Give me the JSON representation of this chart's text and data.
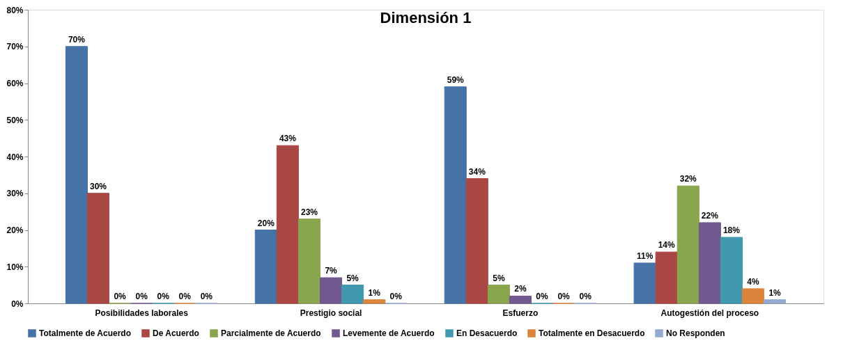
{
  "chart_data": {
    "type": "bar",
    "title": "Dimensión 1",
    "categories": [
      "Posibilidades laborales",
      "Prestigio social",
      "Esfuerzo",
      "Autogestión del proceso"
    ],
    "series": [
      {
        "name": "Totalmente de Acuerdo",
        "color": "#4572a7",
        "values": [
          70,
          20,
          59,
          11
        ],
        "value_labels": [
          "70%",
          "20%",
          "59%",
          "11%"
        ]
      },
      {
        "name": "De Acuerdo",
        "color": "#aa4643",
        "values": [
          30,
          43,
          34,
          14
        ],
        "value_labels": [
          "30%",
          "43%",
          "34%",
          "14%"
        ]
      },
      {
        "name": "Parcialmente de Acuerdo",
        "color": "#89a54e",
        "values": [
          0,
          23,
          5,
          32
        ],
        "value_labels": [
          "0%",
          "23%",
          "5%",
          "32%"
        ]
      },
      {
        "name": "Levemente de Acuerdo",
        "color": "#71588f",
        "values": [
          0,
          7,
          2,
          22
        ],
        "value_labels": [
          "0%",
          "7%",
          "2%",
          "22%"
        ]
      },
      {
        "name": "En Desacuerdo",
        "color": "#4198af",
        "values": [
          0,
          5,
          0,
          18
        ],
        "value_labels": [
          "0%",
          "5%",
          "0%",
          "18%"
        ]
      },
      {
        "name": "Totalmente en Desacuerdo",
        "color": "#db843d",
        "values": [
          0,
          1,
          0,
          4
        ],
        "value_labels": [
          "0%",
          "1%",
          "0%",
          "4%"
        ]
      },
      {
        "name": "No Responden",
        "color": "#93a9cf",
        "values": [
          0,
          0,
          0,
          1
        ],
        "value_labels": [
          "0%",
          "0%",
          "0%",
          "1%"
        ]
      }
    ],
    "ylim": [
      0,
      80
    ],
    "yticks": [
      {
        "value": 0,
        "label": "0%"
      },
      {
        "value": 10,
        "label": "10%"
      },
      {
        "value": 20,
        "label": "20%"
      },
      {
        "value": 30,
        "label": "30%"
      },
      {
        "value": 40,
        "label": "40%"
      },
      {
        "value": 50,
        "label": "50%"
      },
      {
        "value": 60,
        "label": "60%"
      },
      {
        "value": 70,
        "label": "70%"
      },
      {
        "value": 80,
        "label": "80%"
      }
    ],
    "grid": false,
    "legend": "bottom"
  }
}
